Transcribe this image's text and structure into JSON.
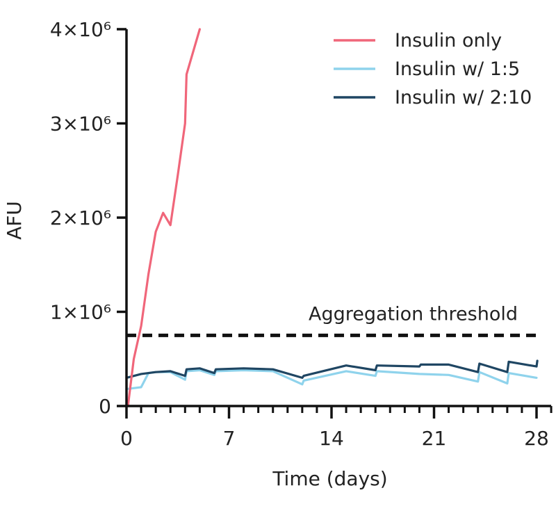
{
  "chart_data": {
    "type": "line",
    "title": "",
    "xlabel": "Time (days)",
    "ylabel": "AFU",
    "xlim": [
      0,
      29
    ],
    "ylim": [
      0,
      4000000
    ],
    "xticks": [
      0,
      7,
      14,
      21,
      28
    ],
    "xtick_labels": [
      "0",
      "7",
      "14",
      "21",
      "28"
    ],
    "xminor_step": 1,
    "yticks": [
      0,
      1000000,
      2000000,
      3000000,
      4000000
    ],
    "ytick_labels": [
      "0",
      "1×10⁶",
      "2×10⁶",
      "3×10⁶",
      "4×10⁶"
    ],
    "legend_position": "top-right",
    "threshold": {
      "label": "Aggregation threshold",
      "value": 750000,
      "color": "#111111"
    },
    "series": [
      {
        "name": "Insulin only",
        "color": "#f0667a",
        "x": [
          0.1,
          0.5,
          1.0,
          1.5,
          2.0,
          2.5,
          3.0,
          3.5,
          4.0,
          4.1,
          5.0
        ],
        "y": [
          0,
          500000,
          850000,
          1400000,
          1850000,
          2050000,
          1920000,
          2450000,
          3000000,
          3520000,
          4000000
        ]
      },
      {
        "name": "Insulin w/ 1:5",
        "color": "#8fd3ec",
        "x": [
          0,
          1,
          1.5,
          2,
          3,
          4,
          4.1,
          5,
          6,
          6.1,
          8,
          10,
          12,
          12.1,
          15,
          17,
          17.1,
          20,
          22,
          24,
          24.1,
          26,
          26.1,
          28
        ],
        "y": [
          180000,
          200000,
          350000,
          360000,
          360000,
          280000,
          370000,
          380000,
          330000,
          370000,
          380000,
          370000,
          230000,
          270000,
          370000,
          320000,
          370000,
          340000,
          330000,
          260000,
          360000,
          240000,
          350000,
          300000
        ]
      },
      {
        "name": "Insulin w/ 2:10",
        "color": "#1f4663",
        "x": [
          0,
          1,
          2,
          3,
          4,
          4.1,
          5,
          6,
          6.1,
          8,
          10,
          12,
          12.1,
          15,
          17,
          17.1,
          20,
          20.1,
          22,
          24,
          24.1,
          26,
          26.1,
          28,
          28.05
        ],
        "y": [
          300000,
          340000,
          360000,
          370000,
          320000,
          390000,
          400000,
          350000,
          390000,
          400000,
          390000,
          300000,
          320000,
          430000,
          380000,
          430000,
          420000,
          440000,
          440000,
          360000,
          450000,
          360000,
          470000,
          420000,
          480000
        ]
      }
    ]
  }
}
